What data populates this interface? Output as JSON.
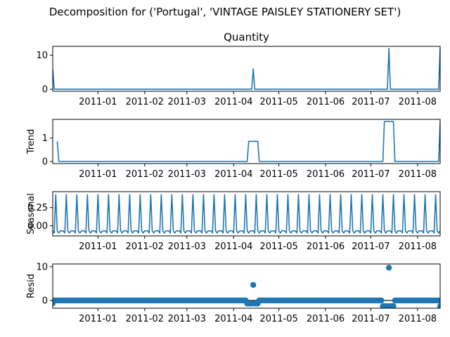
{
  "suptitle": "Decomposition for ('Portugal', 'VINTAGE PAISLEY STATIONERY SET')",
  "colors": {
    "line": "#1f77b4",
    "axis": "#000000",
    "zero_line": "#000000"
  },
  "chart_data": [
    {
      "type": "line",
      "title": "Quantity",
      "ylabel": "",
      "x_range": [
        "2010-12-02",
        "2011-08-16"
      ],
      "ylim": [
        -0.6,
        12.6
      ],
      "yticks": [
        0,
        10
      ],
      "xticks": [
        "2011-01",
        "2011-02",
        "2011-03",
        "2011-04",
        "2011-05",
        "2011-06",
        "2011-07",
        "2011-08"
      ],
      "series": [
        {
          "x": [
            "2010-12-02",
            "2010-12-03",
            "2011-04-13",
            "2011-04-14",
            "2011-04-15",
            "2011-07-12",
            "2011-07-13",
            "2011-07-14",
            "2011-08-15",
            "2011-08-16"
          ],
          "values": [
            6,
            0,
            0,
            6,
            0,
            0,
            12,
            0,
            0,
            12
          ]
        }
      ]
    },
    {
      "type": "line",
      "title": "",
      "ylabel": "Trend",
      "x_range": [
        "2010-12-02",
        "2011-08-16"
      ],
      "ylim": [
        -0.09,
        1.8
      ],
      "yticks": [
        0,
        1
      ],
      "xticks": [
        "2011-01",
        "2011-02",
        "2011-03",
        "2011-04",
        "2011-05",
        "2011-06",
        "2011-07",
        "2011-08"
      ],
      "series": [
        {
          "x": [
            "2010-12-05",
            "2010-12-06",
            "2011-04-10",
            "2011-04-11",
            "2011-04-17",
            "2011-04-18",
            "2011-07-09",
            "2011-07-10",
            "2011-07-16",
            "2011-07-17",
            "2011-08-15",
            "2011-08-16"
          ],
          "values": [
            0.86,
            0,
            0,
            0.86,
            0.86,
            0,
            0,
            1.71,
            1.71,
            0,
            0,
            1.71
          ]
        }
      ]
    },
    {
      "type": "line",
      "title": "",
      "ylabel": "Seasonal",
      "x_range": [
        "2010-12-02",
        "2011-08-16"
      ],
      "ylim": [
        -0.14,
        0.47
      ],
      "yticks": [
        0.0,
        0.25
      ],
      "ytick_labels": [
        "0.00",
        "0.25"
      ],
      "xticks": [
        "2011-01",
        "2011-02",
        "2011-03",
        "2011-04",
        "2011-05",
        "2011-06",
        "2011-07",
        "2011-08"
      ],
      "weekly_pattern": [
        0.43,
        -0.07,
        -0.1,
        -0.07,
        -0.07,
        -0.07,
        -0.1
      ],
      "pattern_start": "2010-12-04",
      "series_start": "2010-12-02",
      "series_end": "2011-08-16"
    },
    {
      "type": "scatter",
      "title": "",
      "ylabel": "Resid",
      "x_range": [
        "2010-12-02",
        "2011-08-16"
      ],
      "ylim": [
        -2.3,
        10.8
      ],
      "yticks": [
        0,
        10
      ],
      "xticks": [
        "2011-01",
        "2011-02",
        "2011-03",
        "2011-04",
        "2011-05",
        "2011-06",
        "2011-07",
        "2011-08"
      ],
      "zero_line": true,
      "default_value": 0,
      "special_points": [
        {
          "x": "2010-12-02",
          "value": -0.8
        },
        {
          "x": "2011-04-10",
          "value": -0.9
        },
        {
          "x": "2011-04-11",
          "value": -0.9
        },
        {
          "x": "2011-04-12",
          "value": -0.9
        },
        {
          "x": "2011-04-13",
          "value": -0.9
        },
        {
          "x": "2011-04-14",
          "value": 4.6
        },
        {
          "x": "2011-04-15",
          "value": -0.9
        },
        {
          "x": "2011-04-16",
          "value": -0.9
        },
        {
          "x": "2011-04-17",
          "value": -0.9
        },
        {
          "x": "2011-07-09",
          "value": -1.7
        },
        {
          "x": "2011-07-10",
          "value": -1.7
        },
        {
          "x": "2011-07-11",
          "value": -1.7
        },
        {
          "x": "2011-07-12",
          "value": -1.7
        },
        {
          "x": "2011-07-13",
          "value": 9.7
        },
        {
          "x": "2011-07-14",
          "value": -1.7
        },
        {
          "x": "2011-07-15",
          "value": -1.7
        },
        {
          "x": "2011-07-16",
          "value": -1.7
        },
        {
          "x": "2011-08-16",
          "value": -1.7
        }
      ],
      "series_start": "2010-12-02",
      "series_end": "2011-08-16"
    }
  ]
}
